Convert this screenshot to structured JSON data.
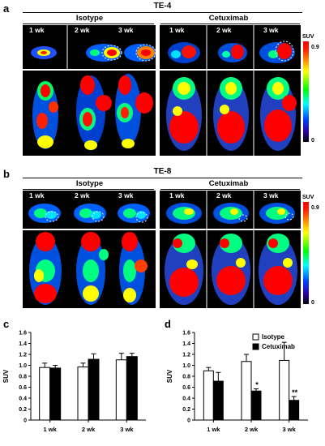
{
  "panel_a": {
    "label": "a",
    "title": "TE-4",
    "group_left": "Isotype",
    "group_right": "Cetuximab",
    "weeks": [
      "1 wk",
      "2 wk",
      "3 wk"
    ],
    "colorbar": {
      "label": "SUV",
      "max": "0.9",
      "min": "0"
    }
  },
  "panel_b": {
    "label": "b",
    "title": "TE-8",
    "group_left": "Isotype",
    "group_right": "Cetuximab",
    "weeks": [
      "1 wk",
      "2 wk",
      "3 wk"
    ],
    "colorbar": {
      "label": "SUV",
      "max": "0.9",
      "min": "0"
    }
  },
  "panel_c": {
    "label": "c"
  },
  "panel_d": {
    "label": "d"
  },
  "chart_data": [
    {
      "type": "bar",
      "panel": "c",
      "categories": [
        "1 wk",
        "2 wk",
        "3 wk"
      ],
      "series": [
        {
          "values": [
            0.96,
            0.97,
            1.1
          ],
          "errors": [
            0.08,
            0.07,
            0.12
          ],
          "color": "#ffffff"
        },
        {
          "values": [
            0.95,
            1.11,
            1.16
          ],
          "errors": [
            0.05,
            0.1,
            0.06
          ],
          "color": "#000000"
        }
      ],
      "ylabel": "SUV",
      "ylim": [
        0,
        1.6
      ],
      "yticks": [
        "0",
        "0.2",
        "0.4",
        "0.6",
        "0.8",
        "1.0",
        "1.2",
        "1.4",
        "1.6"
      ]
    },
    {
      "type": "bar",
      "panel": "d",
      "categories": [
        "1 wk",
        "2 wk",
        "3 wk"
      ],
      "series": [
        {
          "name": "Isotype",
          "values": [
            0.9,
            1.07,
            1.09
          ],
          "errors": [
            0.06,
            0.13,
            0.33
          ],
          "color": "#ffffff"
        },
        {
          "name": "Cetuximab",
          "values": [
            0.71,
            0.53,
            0.36
          ],
          "errors": [
            0.16,
            0.04,
            0.07
          ],
          "color": "#000000"
        }
      ],
      "annotations": [
        {
          "category": "2 wk",
          "text": "*"
        },
        {
          "category": "3 wk",
          "text": "**"
        }
      ],
      "ylabel": "SUV",
      "ylim": [
        0,
        1.6
      ],
      "yticks": [
        "0",
        "0.2",
        "0.4",
        "0.6",
        "0.8",
        "1.0",
        "1.2",
        "1.4",
        "1.6"
      ],
      "legend_position": "top-right"
    }
  ]
}
